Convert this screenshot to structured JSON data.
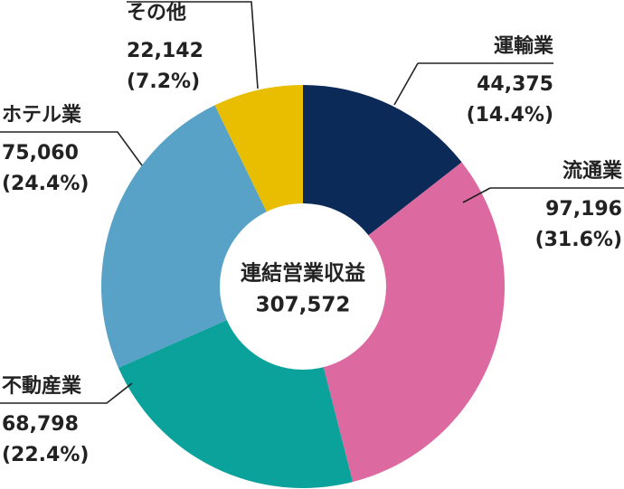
{
  "chart_data": {
    "type": "donut",
    "categories": [
      "運輸業",
      "流通業",
      "不動産業",
      "ホテル業",
      "その他"
    ],
    "values": [
      44375,
      97196,
      68798,
      75060,
      22142
    ],
    "value_labels": [
      "44,375",
      "97,196",
      "68,798",
      "75,060",
      "22,142"
    ],
    "percent_labels": [
      "(14.4%)",
      "(31.6%)",
      "(22.4%)",
      "(24.4%)",
      "(7.2%)"
    ],
    "colors": [
      "#0c2a58",
      "#dc699f",
      "#0ba29c",
      "#58a2c7",
      "#e9bd00"
    ],
    "center_label": "連結営業収益",
    "total": 307572,
    "total_label": "307,572"
  }
}
